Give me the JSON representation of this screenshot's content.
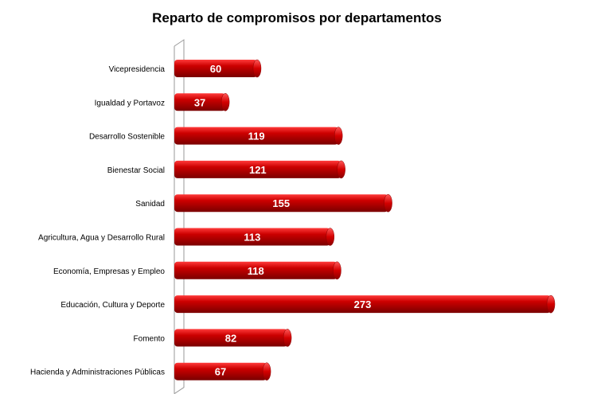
{
  "chart_data": {
    "type": "bar",
    "orientation": "horizontal",
    "title": "Reparto de compromisos por departamentos",
    "xlabel": "",
    "ylabel": "",
    "categories": [
      "Vicepresidencia",
      "Igualdad y Portavoz",
      "Desarrollo Sostenible",
      "Bienestar Social",
      "Sanidad",
      "Agricultura, Agua y Desarrollo Rural",
      "Economía, Empresas y Empleo",
      "Educación, Cultura y Deporte",
      "Fomento",
      "Hacienda y Administraciones Públicas"
    ],
    "values": [
      60,
      37,
      119,
      121,
      155,
      113,
      118,
      273,
      82,
      67
    ],
    "xlim": [
      0,
      273
    ],
    "grid": false,
    "legend": "none",
    "data_labels": true,
    "bar_color": "#cc0000",
    "bar_highlight_color": "#ff3b3b",
    "bar_shadow_color": "#7a0000"
  }
}
